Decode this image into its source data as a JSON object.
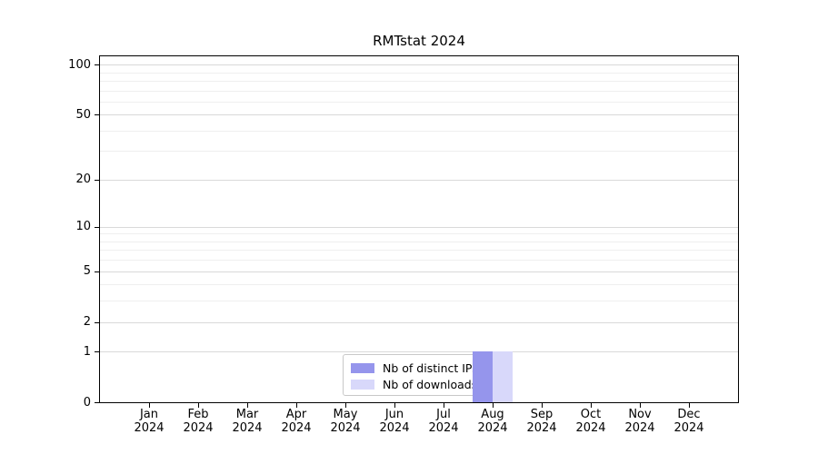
{
  "chart_data": {
    "type": "bar",
    "title": "RMTstat 2024",
    "categories": [
      "Jan",
      "Feb",
      "Mar",
      "Apr",
      "May",
      "Jun",
      "Jul",
      "Aug",
      "Sep",
      "Oct",
      "Nov",
      "Dec"
    ],
    "category_year": "2024",
    "series": [
      {
        "name": "Nb of distinct IPs",
        "color": "#9595ec",
        "values": [
          0,
          0,
          0,
          0,
          0,
          0,
          0,
          1,
          0,
          0,
          0,
          0
        ]
      },
      {
        "name": "Nb of downloads",
        "color": "#d8d8fa",
        "values": [
          0,
          0,
          0,
          0,
          0,
          0,
          0,
          1,
          0,
          0,
          0,
          0
        ]
      }
    ],
    "y_axis": {
      "scale": "log1p",
      "ticks": [
        0,
        1,
        2,
        5,
        10,
        20,
        50,
        100
      ],
      "minor_ticks": [
        3,
        4,
        6,
        7,
        8,
        9,
        30,
        40,
        60,
        70,
        80,
        90
      ],
      "max": 112
    },
    "grid": true,
    "legend": {
      "position": "bottom-center",
      "border": true
    }
  }
}
